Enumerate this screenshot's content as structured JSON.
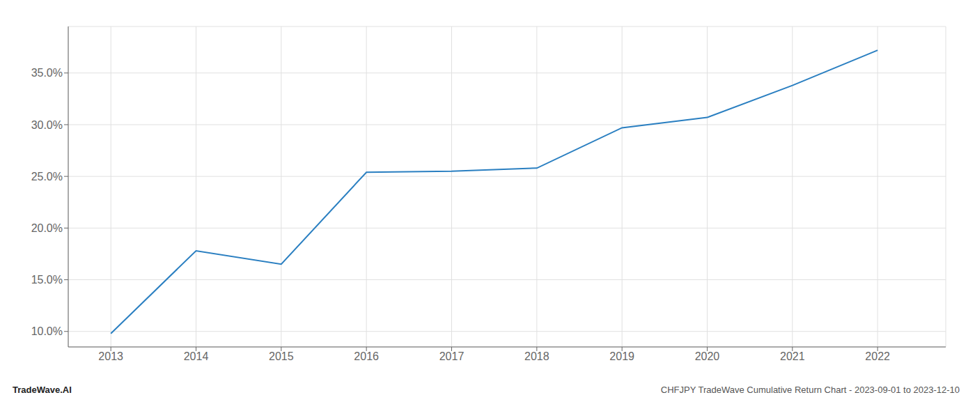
{
  "chart_data": {
    "type": "line",
    "x": [
      2013,
      2014,
      2015,
      2016,
      2017,
      2018,
      2019,
      2020,
      2021,
      2022
    ],
    "values": [
      9.8,
      17.8,
      16.5,
      25.4,
      25.5,
      25.8,
      29.7,
      30.7,
      33.8,
      37.2
    ],
    "color": "#2a7fc1",
    "xlim": [
      2012.5,
      2022.8
    ],
    "xticks": [
      2013,
      2014,
      2015,
      2016,
      2017,
      2018,
      2019,
      2020,
      2021,
      2022
    ],
    "ylim": [
      8.5,
      39.5
    ],
    "yticks": [
      {
        "value": 10.0,
        "label": "10.0%"
      },
      {
        "value": 15.0,
        "label": "15.0%"
      },
      {
        "value": 20.0,
        "label": "20.0%"
      },
      {
        "value": 25.0,
        "label": "25.0%"
      },
      {
        "value": 30.0,
        "label": "30.0%"
      },
      {
        "value": 35.0,
        "label": "35.0%"
      }
    ],
    "grid": true,
    "annotations": [
      "TradeWave.AI",
      "CHFJPY TradeWave Cumulative Return Chart - 2023-09-01 to 2023-12-10"
    ]
  }
}
